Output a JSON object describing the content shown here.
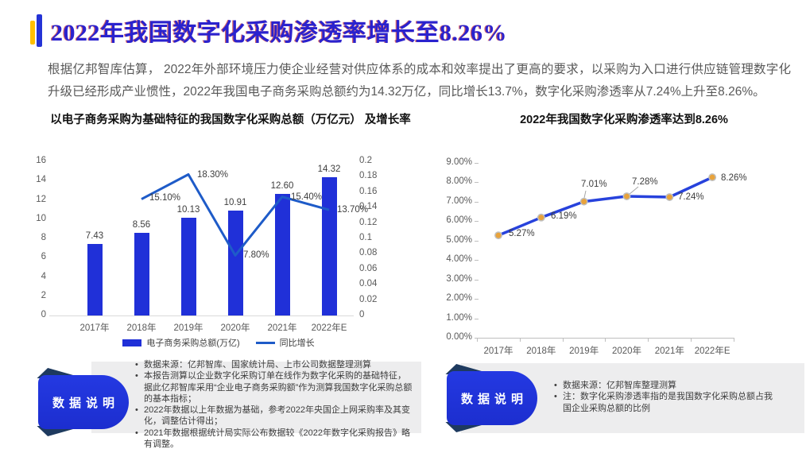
{
  "page": {
    "title": "2022年我国数字化采购渗透率增长至8.26%",
    "intro": "根据亿邦智库估算， 2022年外部环境压力使企业经营对供应体系的成本和效率提出了更高的要求，以采购为入口进行供应链管理数字化升级已经形成产业惯性，2022年我国电子商务采购总额约为14.32万亿，同比增长13.7%，数字化采购渗透率从7.24%上升至8.26%。"
  },
  "chart_data": [
    {
      "type": "bar",
      "subtype": "bar+line-combo",
      "title": "以电子商务采购为基础特征的我国数字化采购总额（万亿元） 及增长率",
      "categories": [
        "2017年",
        "2018年",
        "2019年",
        "2020年",
        "2021年",
        "2022年E"
      ],
      "series": [
        {
          "name": "电子商务采购总额(万亿)",
          "type": "bar",
          "values": [
            7.43,
            8.56,
            10.13,
            10.91,
            12.6,
            14.32
          ]
        },
        {
          "name": "同比增长",
          "type": "line",
          "unit": "%",
          "values": [
            null,
            15.1,
            18.3,
            7.8,
            15.4,
            13.7
          ]
        }
      ],
      "left_axis": {
        "min": 0,
        "max": 16,
        "step": 2
      },
      "right_axis": {
        "min": 0,
        "max": 0.2,
        "step": 0.02
      },
      "legend_position": "bottom",
      "grid": false
    },
    {
      "type": "line",
      "title": "2022年我国数字化采购渗透率达到8.26%",
      "categories": [
        "2017年",
        "2018年",
        "2019年",
        "2020年",
        "2021年",
        "2022年E"
      ],
      "values": [
        5.27,
        6.19,
        7.01,
        7.28,
        7.24,
        8.26
      ],
      "unit": "%",
      "y_axis": {
        "min": 0,
        "max": 9,
        "step": 1,
        "format": "0.00%"
      },
      "grid": false,
      "marker": "circle"
    }
  ],
  "notes_left": {
    "badge": "数据说明",
    "items": [
      "数据来源：亿邦智库、国家统计局、上市公司数据整理测算",
      "本报告测算以企业数字化采购订单在线作为数字化采购的基础特征，据此亿邦智库采用“企业电子商务采购额”作为测算我国数字化采购总额的基本指标；",
      "2022年数据以上年数据为基础，参考2022年央国企上网采购率及其变化，调整估计得出；",
      "2021年数据根据统计局实际公布数据较《2022年数字化采购报告》略有调整。"
    ]
  },
  "notes_right": {
    "badge": "数据说明",
    "items": [
      "数据来源：亿邦智库整理测算",
      "注：数字化采购渗透率指的是我国数字化采购总额占我国企业采购总额的比例"
    ]
  },
  "colors": {
    "title_blue": "#2A22CE",
    "accent_yellow": "#FFC000",
    "accent_blue": "#2433D6",
    "bar_blue": "#2030D8",
    "line_blue_left": "#1E5BC8",
    "line_blue_right": "#2742DC",
    "marker_gold": "#E8A33C",
    "marker_ring": "#BFBFBF",
    "leader_gray": "#A6A6A6",
    "badge_blue": "#2136E0",
    "badge_fold_navy": "#1E3A5F",
    "panel_gray": "#EDEDEE",
    "body_gray": "#595959"
  }
}
